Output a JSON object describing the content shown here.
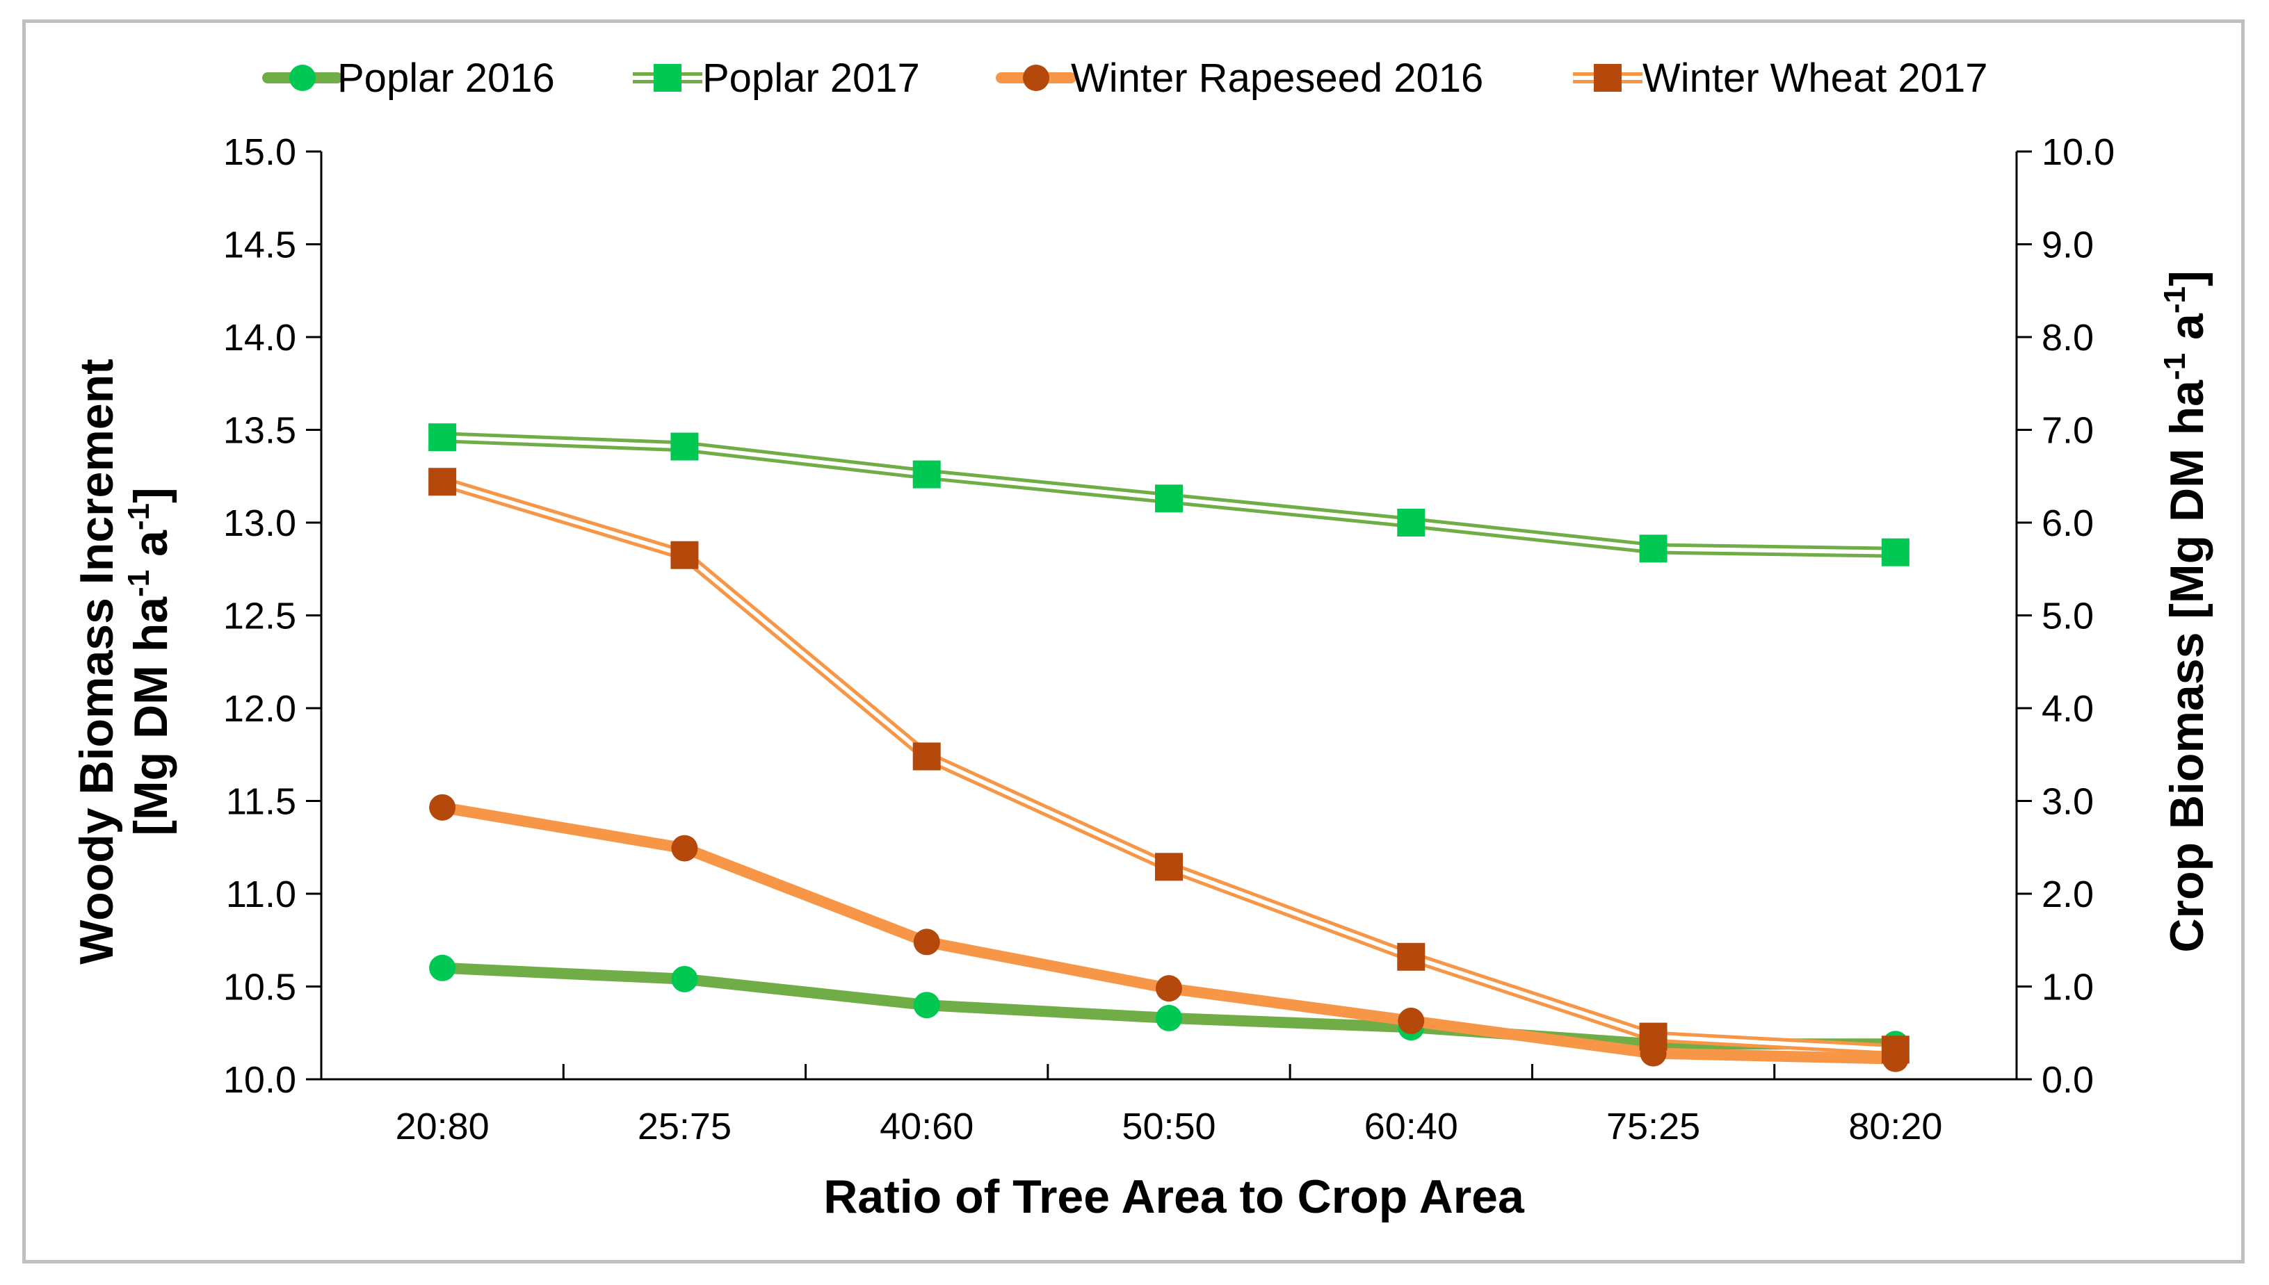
{
  "chart_data": {
    "type": "line",
    "categories": [
      "20:80",
      "25:75",
      "40:60",
      "50:50",
      "60:40",
      "75:25",
      "80:20"
    ],
    "xlabel": "Ratio of Tree Area to Crop Area",
    "ylabel": {
      "line1": "Woody Biomass Increment",
      "line2": "[Mg DM ha",
      "sup1": "-1",
      "mid": " a",
      "sup2": "-1",
      "end": "]"
    },
    "y2label": {
      "main": "Crop Biomass [Mg DM ha",
      "sup1": "-1",
      "mid": " a",
      "sup2": "-1",
      "end": "]"
    },
    "ylim": [
      10.0,
      15.0
    ],
    "y2lim": [
      0.0,
      10.0
    ],
    "yticks": [
      "10.0",
      "10.5",
      "11.0",
      "11.5",
      "12.0",
      "12.5",
      "13.0",
      "13.5",
      "14.0",
      "14.5",
      "15.0"
    ],
    "y2ticks": [
      "0.0",
      "1.0",
      "2.0",
      "3.0",
      "4.0",
      "5.0",
      "6.0",
      "7.0",
      "8.0",
      "9.0",
      "10.0"
    ],
    "legend_position": "top",
    "grid": false,
    "series": [
      {
        "name": "Poplar 2016",
        "axis": "left",
        "marker": "circle",
        "style": "solid",
        "line_color": "#70ad47",
        "marker_color": "#00c853",
        "values": [
          10.6,
          10.54,
          10.4,
          10.33,
          10.28,
          10.19,
          10.19
        ]
      },
      {
        "name": "Poplar 2017",
        "axis": "left",
        "marker": "square",
        "style": "double",
        "line_color": "#70ad47",
        "marker_color": "#00c853",
        "values": [
          13.46,
          13.41,
          13.26,
          13.13,
          13.0,
          12.86,
          12.84
        ]
      },
      {
        "name": "Winter Rapeseed 2016",
        "axis": "right",
        "marker": "circle",
        "style": "solid",
        "line_color": "#f79646",
        "marker_color": "#b5490b",
        "values": [
          2.93,
          2.49,
          1.48,
          0.98,
          0.63,
          0.28,
          0.22
        ]
      },
      {
        "name": "Winter Wheat 2017",
        "axis": "right",
        "marker": "square",
        "style": "double",
        "line_color": "#f79646",
        "marker_color": "#b5490b",
        "values": [
          6.44,
          5.65,
          3.48,
          2.29,
          1.32,
          0.46,
          0.32
        ]
      }
    ]
  }
}
